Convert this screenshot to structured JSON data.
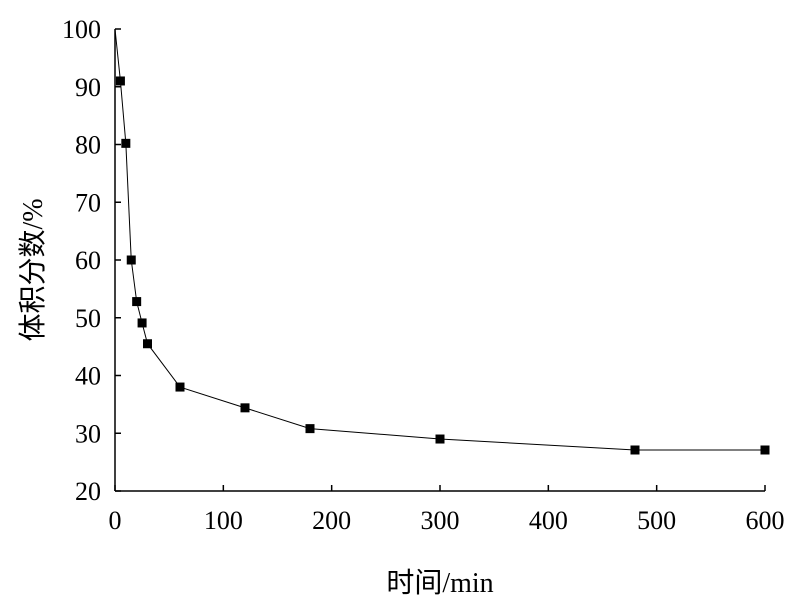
{
  "chart_data": {
    "type": "line",
    "title": "",
    "xlabel": "时间/min",
    "ylabel": "体积分数/%",
    "xlim": [
      0,
      600
    ],
    "ylim": [
      20,
      100
    ],
    "x_ticks": [
      0,
      100,
      200,
      300,
      400,
      500,
      600
    ],
    "y_ticks": [
      20,
      30,
      40,
      50,
      60,
      70,
      80,
      90,
      100
    ],
    "grid": false,
    "legend": "none",
    "series": [
      {
        "color": "#000000",
        "marker": "square",
        "line_start": {
          "x": 0,
          "y": 100
        },
        "points": [
          {
            "x": 5,
            "y": 91
          },
          {
            "x": 10,
            "y": 80.2
          },
          {
            "x": 15,
            "y": 60
          },
          {
            "x": 20,
            "y": 52.8
          },
          {
            "x": 25,
            "y": 49.1
          },
          {
            "x": 30,
            "y": 45.5
          },
          {
            "x": 60,
            "y": 38
          },
          {
            "x": 120,
            "y": 34.4
          },
          {
            "x": 180,
            "y": 30.8
          },
          {
            "x": 300,
            "y": 29
          },
          {
            "x": 480,
            "y": 27.1
          },
          {
            "x": 600,
            "y": 27.1
          }
        ]
      }
    ]
  }
}
